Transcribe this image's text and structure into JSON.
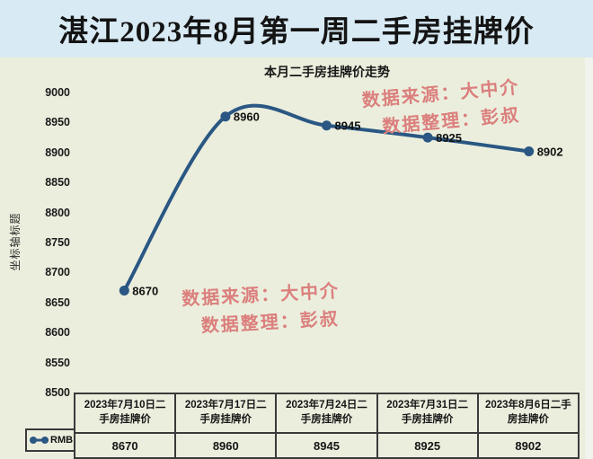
{
  "page": {
    "title": "湛江2023年8月第一周二手房挂牌价"
  },
  "chart_data": {
    "type": "line",
    "title": "本月二手房挂牌价走势",
    "xlabel": "",
    "ylabel": "坐标轴标题",
    "categories": [
      "2023年7月10日二\n手房挂牌价",
      "2023年7月17日二\n手房挂牌价",
      "2023年7月24日二\n手房挂牌价",
      "2023年7月31日二\n手房挂牌价",
      "2023年8月6日二手\n房挂牌价"
    ],
    "series": [
      {
        "name": "RMB",
        "values": [
          8670,
          8960,
          8945,
          8925,
          8902
        ]
      }
    ],
    "data_labels": [
      "8670",
      "8960",
      "8945",
      "8925",
      "8902"
    ],
    "ylim": [
      8500,
      9000
    ],
    "y_ticks": [
      9000,
      8950,
      8900,
      8850,
      8800,
      8750,
      8700,
      8650,
      8600,
      8550,
      8500
    ],
    "grid": false,
    "line_smooth": true,
    "marker": "circle",
    "legend_position": "table-left",
    "line_color": "#2a5783"
  },
  "watermark": {
    "line1": "数据来源：大中介",
    "line2": "数据整理：彭叔",
    "color": "#db7f7d"
  },
  "colors": {
    "title_bar_bg": "#d8eaf3",
    "chart_bg": "#ebeedd",
    "table_border": "#3a3a3a",
    "corner_mark": "#2f7d36",
    "text": "#141414"
  }
}
